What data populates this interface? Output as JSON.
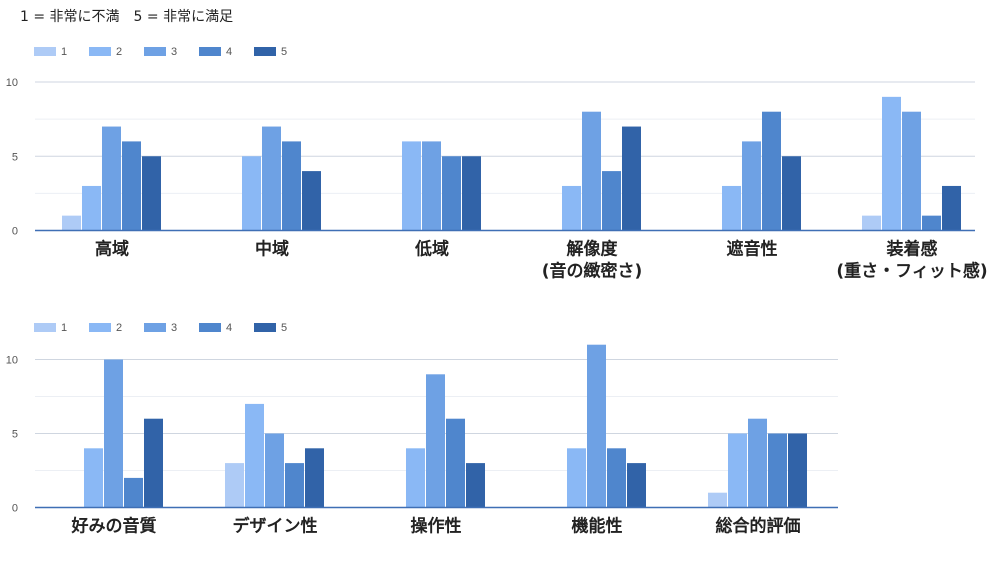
{
  "note": "1 = 非常に不満　5 = 非常に満足",
  "colors": [
    "#aecbf6",
    "#8ab8f5",
    "#6ea1e4",
    "#4f86cd",
    "#3163a8"
  ],
  "chart_data": [
    {
      "type": "bar",
      "legend": [
        "1",
        "2",
        "3",
        "4",
        "5"
      ],
      "ylim": [
        0,
        10
      ],
      "yticks": [
        "0",
        "5",
        "10"
      ],
      "categories": [
        [
          "高域"
        ],
        [
          "中域"
        ],
        [
          "低域"
        ],
        [
          "解像度",
          "(音の緻密さ)"
        ],
        [
          "遮音性"
        ],
        [
          "装着感",
          "(重さ・フィット感)"
        ]
      ],
      "series": [
        {
          "name": "1",
          "values": [
            1,
            0,
            0,
            0,
            0,
            1
          ]
        },
        {
          "name": "2",
          "values": [
            3,
            5,
            6,
            3,
            3,
            9
          ]
        },
        {
          "name": "3",
          "values": [
            7,
            7,
            6,
            8,
            6,
            8
          ]
        },
        {
          "name": "4",
          "values": [
            6,
            6,
            5,
            4,
            8,
            1
          ]
        },
        {
          "name": "5",
          "values": [
            5,
            4,
            5,
            7,
            5,
            3
          ]
        }
      ]
    },
    {
      "type": "bar",
      "legend": [
        "1",
        "2",
        "3",
        "4",
        "5"
      ],
      "ylim": [
        0,
        10
      ],
      "yticks": [
        "0",
        "5",
        "10"
      ],
      "categories": [
        [
          "好みの音質"
        ],
        [
          "デザイン性"
        ],
        [
          "操作性"
        ],
        [
          "機能性"
        ],
        [
          "総合的評価"
        ]
      ],
      "series": [
        {
          "name": "1",
          "values": [
            0,
            3,
            0,
            0,
            1
          ]
        },
        {
          "name": "2",
          "values": [
            4,
            7,
            4,
            4,
            5
          ]
        },
        {
          "name": "3",
          "values": [
            10,
            5,
            9,
            11,
            6
          ]
        },
        {
          "name": "4",
          "values": [
            2,
            3,
            6,
            4,
            5
          ]
        },
        {
          "name": "5",
          "values": [
            6,
            4,
            3,
            3,
            5
          ]
        }
      ]
    }
  ]
}
